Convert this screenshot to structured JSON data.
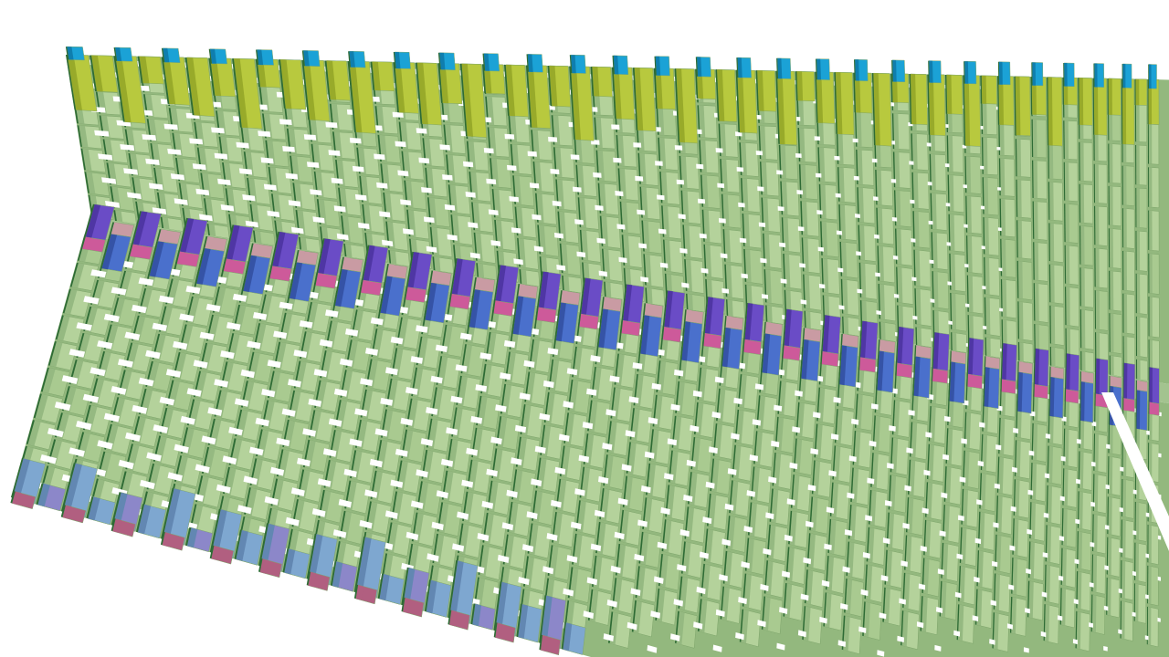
{
  "palette": {
    "background": "#ffffff",
    "sheet_fill": "#93b87e",
    "seam_band_fill": "#a3c38f",
    "brick_face": "#b4d29b",
    "brick_face_alt": "#a9ca90",
    "brick_side": "#95b981",
    "brick_edge": "#2e6b35",
    "brick_stroke": "#7ea56b",
    "top_edge_yellow": "#b8c93e",
    "top_edge_yellow_side": "#98aa2a",
    "top_edge_cyan": "#1ba2d6",
    "top_edge_cyan_side": "#0f7eae",
    "seam_purple": "#6a4cc6",
    "seam_purple_side": "#4f36a4",
    "seam_blue": "#4a70cc",
    "seam_blue_side": "#3553a6",
    "seam_pink": "#cd5a9a",
    "seam_rose": "#c99ba3",
    "bottom_edge_blue": "#7ea7d0",
    "bottom_edge_blue_side": "#6287b2",
    "bottom_edge_violet": "#8c87c9",
    "bottom_edge_pink": "#b15f80"
  }
}
